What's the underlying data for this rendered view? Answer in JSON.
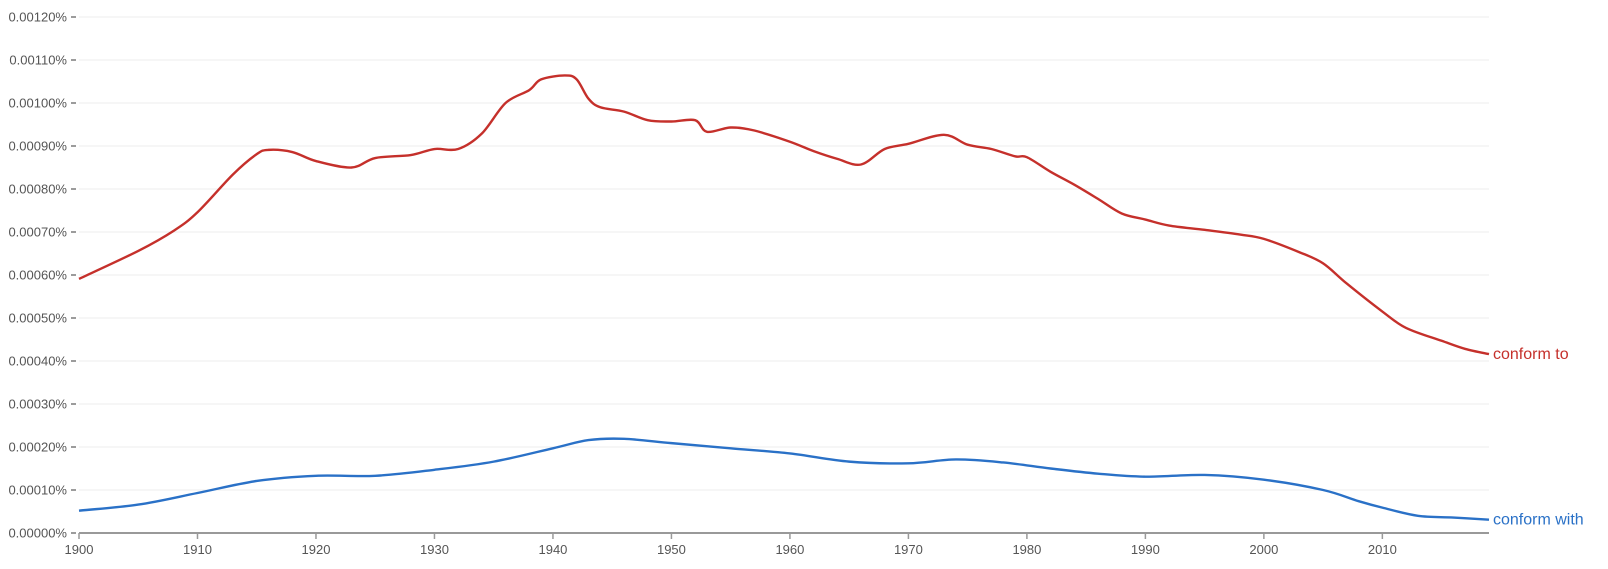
{
  "chart_data": {
    "type": "line",
    "title": "",
    "xlabel": "",
    "ylabel": "",
    "xlim": [
      1900,
      2019
    ],
    "ylim": [
      0,
      0.0012
    ],
    "grid": true,
    "legend": "inline-right",
    "x_ticks": [
      "1900",
      "1910",
      "1920",
      "1930",
      "1940",
      "1950",
      "1960",
      "1970",
      "1980",
      "1990",
      "2000",
      "2010"
    ],
    "y_ticks": [
      "0.00000%",
      "0.00010%",
      "0.00020%",
      "0.00030%",
      "0.00040%",
      "0.00050%",
      "0.00060%",
      "0.00070%",
      "0.00080%",
      "0.00090%",
      "0.00100%",
      "0.00110%",
      "0.00120%"
    ],
    "series": [
      {
        "name": "conform to",
        "color": "#c5302b",
        "x": [
          1900,
          1905,
          1908,
          1910,
          1913,
          1915,
          1916,
          1918,
          1920,
          1923,
          1925,
          1928,
          1930,
          1932,
          1934,
          1936,
          1938,
          1939,
          1941,
          1942,
          1943,
          1944,
          1946,
          1948,
          1950,
          1952,
          1953,
          1955,
          1957,
          1960,
          1962,
          1964,
          1966,
          1968,
          1970,
          1973,
          1975,
          1977,
          1979,
          1980,
          1982,
          1984,
          1986,
          1988,
          1990,
          1992,
          1995,
          1998,
          2000,
          2003,
          2005,
          2007,
          2010,
          2012,
          2015,
          2017,
          2019
        ],
        "y": [
          0.000591,
          0.000656,
          0.000703,
          0.000746,
          0.000834,
          0.000881,
          0.000891,
          0.000886,
          0.000865,
          0.00085,
          0.000872,
          0.000879,
          0.000893,
          0.000893,
          0.000929,
          0.001,
          0.00103,
          0.001055,
          0.001064,
          0.001055,
          0.00101,
          0.00099,
          0.00098,
          0.00096,
          0.000957,
          0.00096,
          0.000933,
          0.000943,
          0.000936,
          0.00091,
          0.000888,
          0.00087,
          0.000857,
          0.000893,
          0.000905,
          0.000926,
          0.000903,
          0.000893,
          0.000876,
          0.000874,
          0.00084,
          0.00081,
          0.000777,
          0.000743,
          0.000729,
          0.000715,
          0.000705,
          0.000694,
          0.000684,
          0.000653,
          0.000627,
          0.00058,
          0.000515,
          0.000477,
          0.000447,
          0.000428,
          0.000416
        ]
      },
      {
        "name": "conform with",
        "color": "#2a71c7",
        "x": [
          1900,
          1905,
          1910,
          1915,
          1920,
          1925,
          1930,
          1935,
          1940,
          1943,
          1946,
          1950,
          1955,
          1960,
          1965,
          1970,
          1974,
          1978,
          1982,
          1986,
          1990,
          1995,
          2000,
          2005,
          2008,
          2010,
          2013,
          2016,
          2019
        ],
        "y": [
          5.2e-05,
          6.6e-05,
          9.3e-05,
          0.000121,
          0.000133,
          0.000133,
          0.000147,
          0.000166,
          0.000197,
          0.000216,
          0.000219,
          0.000209,
          0.000197,
          0.000185,
          0.000166,
          0.000162,
          0.000171,
          0.000164,
          0.00015,
          0.000138,
          0.000131,
          0.000135,
          0.000124,
          0.0001,
          7.4e-05,
          5.9e-05,
          4e-05,
          3.6e-05,
          3.1e-05
        ]
      }
    ]
  }
}
